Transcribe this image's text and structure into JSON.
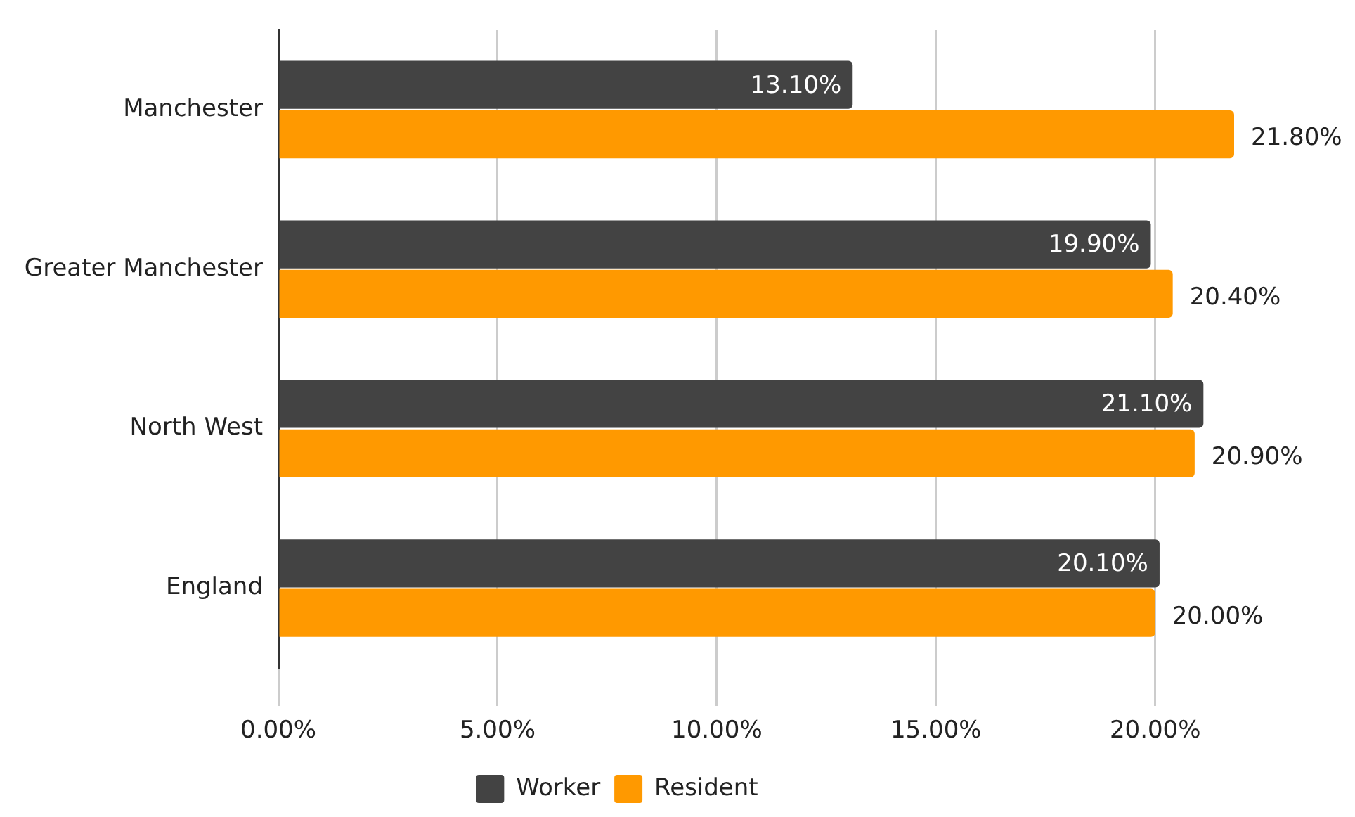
{
  "chart_data": {
    "type": "bar",
    "orientation": "horizontal",
    "categories": [
      "Manchester",
      "Greater Manchester",
      "North West",
      "England"
    ],
    "series": [
      {
        "name": "Worker",
        "color": "#434343",
        "values": [
          13.1,
          19.9,
          21.1,
          20.1
        ],
        "value_labels": [
          "13.10%",
          "19.90%",
          "21.10%",
          "20.10%"
        ]
      },
      {
        "name": "Resident",
        "color": "#ff9900",
        "values": [
          21.8,
          20.4,
          20.9,
          20.0
        ],
        "value_labels": [
          "21.80%",
          "20.40%",
          "20.90%",
          "20.00%"
        ]
      }
    ],
    "xlim": [
      0,
      21.8
    ],
    "xticks": [
      {
        "value": 0,
        "label": "0.00%"
      },
      {
        "value": 5,
        "label": "5.00%"
      },
      {
        "value": 10,
        "label": "10.00%"
      },
      {
        "value": 15,
        "label": "15.00%"
      },
      {
        "value": 20,
        "label": "20.00%"
      }
    ],
    "grid": "x",
    "legend": "bottom"
  }
}
